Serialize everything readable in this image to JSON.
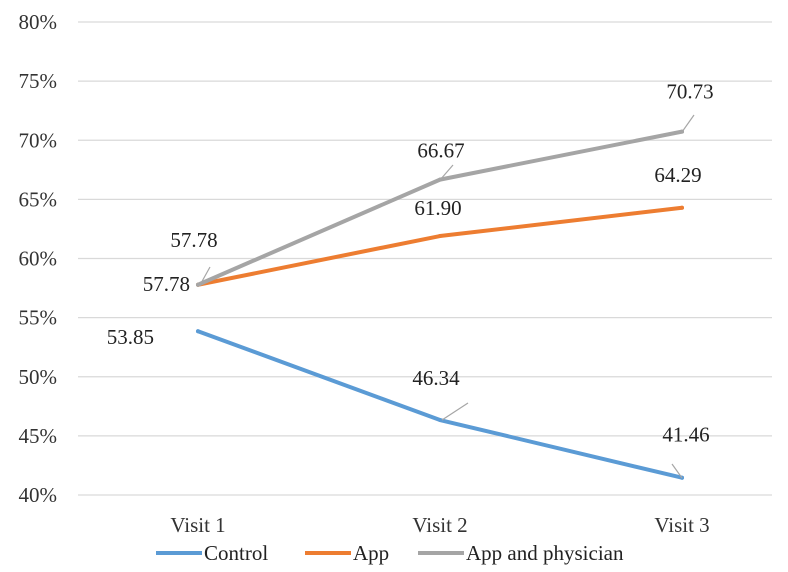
{
  "chart_data": {
    "type": "line",
    "categories": [
      "Visit 1",
      "Visit 2",
      "Visit 3"
    ],
    "series": [
      {
        "name": "Control",
        "values": [
          53.85,
          46.34,
          41.46
        ],
        "labels": [
          "53.85",
          "46.34",
          "41.46"
        ],
        "color": "#5b9bd5"
      },
      {
        "name": "App",
        "values": [
          57.78,
          61.9,
          64.29
        ],
        "labels": [
          "57.78",
          "61.90",
          "64.29"
        ],
        "color": "#ed7d31"
      },
      {
        "name": "App and physician",
        "values": [
          57.78,
          66.67,
          70.73
        ],
        "labels": [
          "57.78",
          "66.67",
          "70.73"
        ],
        "color": "#a5a5a5"
      }
    ],
    "y_ticks": [
      "40%",
      "45%",
      "50%",
      "55%",
      "60%",
      "65%",
      "70%",
      "75%",
      "80%"
    ],
    "ylim": [
      40,
      80
    ],
    "grid": true,
    "legend": "bottom"
  }
}
